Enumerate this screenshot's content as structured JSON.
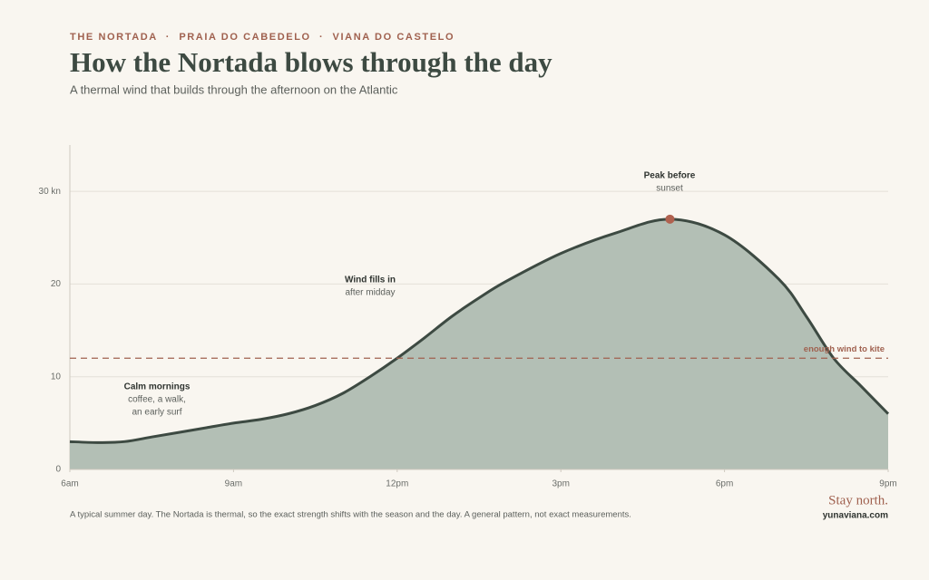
{
  "chart_data": {
    "type": "area",
    "eyebrow": "THE NORTADA  ·  PRAIA DO CABEDELO  ·  VIANA DO CASTELO",
    "title": "How the Nortada blows through the day",
    "subtitle": "A thermal wind that builds through the afternoon on the Atlantic",
    "x": [
      6,
      6.5,
      7,
      7.5,
      8,
      8.5,
      9,
      9.5,
      10,
      10.5,
      11,
      11.5,
      12,
      12.5,
      13,
      13.5,
      14,
      15,
      16,
      17,
      18,
      19,
      19.5,
      20,
      20.5,
      21
    ],
    "series": [
      {
        "name": "Wind",
        "color": "#3d4a42",
        "fill": "#b3bfb5",
        "values": [
          3.0,
          2.9,
          3.0,
          3.5,
          4.0,
          4.5,
          5.0,
          5.4,
          6.0,
          6.9,
          8.2,
          10.0,
          12.0,
          14.2,
          16.5,
          18.5,
          20.3,
          23.3,
          25.5,
          27.0,
          25.3,
          20.5,
          16.5,
          12.0,
          9.0,
          6.0
        ]
      }
    ],
    "xlim": [
      6,
      21
    ],
    "xticks": [
      {
        "value": 6,
        "label": "6am"
      },
      {
        "value": 9,
        "label": "9am"
      },
      {
        "value": 12,
        "label": "12pm"
      },
      {
        "value": 15,
        "label": "3pm"
      },
      {
        "value": 18,
        "label": "6pm"
      },
      {
        "value": 21,
        "label": "9pm"
      }
    ],
    "ylim": [
      0,
      35
    ],
    "yticks": [
      0,
      10,
      20,
      {
        "value": 30,
        "label": "30 kn"
      }
    ],
    "grid": true,
    "threshold": {
      "value": 12,
      "label": "enough wind to kite",
      "color": "#a0614f"
    },
    "peak_index": 19,
    "annotations": [
      {
        "lines": [
          "Calm mornings",
          "coffee, a walk,",
          "an early surf"
        ]
      },
      {
        "lines": [
          "Wind fills in",
          "after midday"
        ]
      },
      {
        "lines": [
          "Peak before",
          "sunset"
        ]
      }
    ],
    "note": "A typical summer day. The Nortada is thermal, so the exact strength shifts with the season and the day. A general pattern, not exact measurements.",
    "signoff": "Stay north.",
    "site": "yunaviana.com"
  }
}
